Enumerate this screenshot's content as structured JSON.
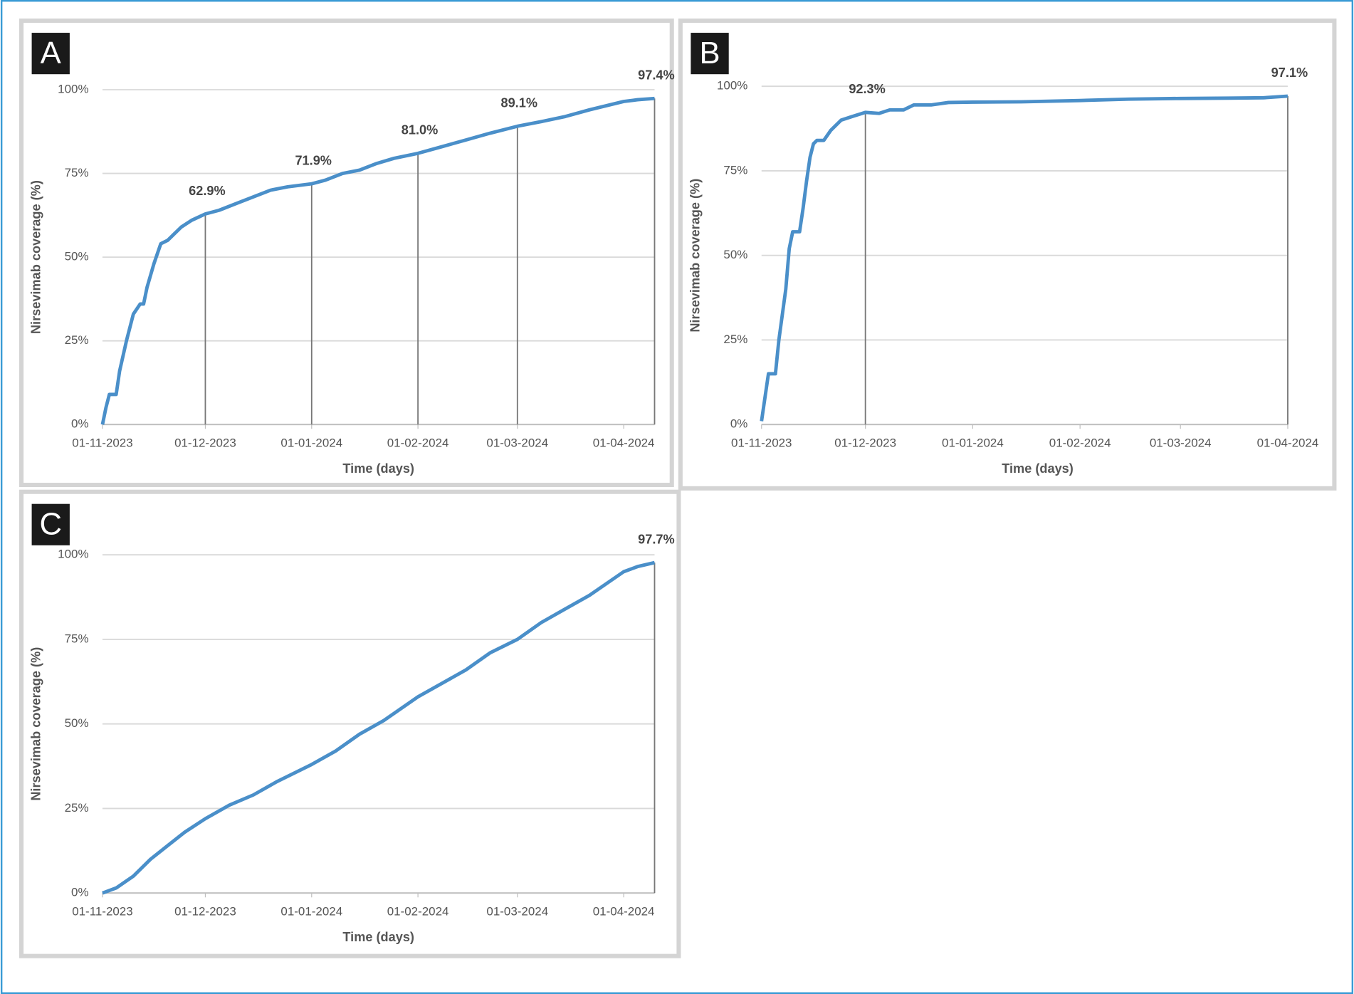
{
  "chart_data": [
    {
      "type": "line",
      "panel": "A",
      "ylabel": "Nirsevimab coverage (%)",
      "xlabel": "Time (days)",
      "color": "#4a8fc9",
      "x": [
        "2023-11-01",
        "2023-11-02",
        "2023-11-03",
        "2023-11-05",
        "2023-11-06",
        "2023-11-08",
        "2023-11-10",
        "2023-11-12",
        "2023-11-13",
        "2023-11-14",
        "2023-11-16",
        "2023-11-18",
        "2023-11-20",
        "2023-11-22",
        "2023-11-24",
        "2023-11-27",
        "2023-12-01",
        "2023-12-05",
        "2023-12-10",
        "2023-12-15",
        "2023-12-20",
        "2023-12-25",
        "2024-01-01",
        "2024-01-05",
        "2024-01-10",
        "2024-01-15",
        "2024-01-20",
        "2024-01-25",
        "2024-02-01",
        "2024-02-08",
        "2024-02-15",
        "2024-02-22",
        "2024-03-01",
        "2024-03-08",
        "2024-03-15",
        "2024-03-22",
        "2024-04-01",
        "2024-04-05",
        "2024-04-10"
      ],
      "values": [
        0,
        5,
        9,
        9,
        16,
        25,
        33,
        36,
        36,
        41,
        48,
        54,
        55,
        57,
        59,
        61,
        62.9,
        64,
        66,
        68,
        70,
        71,
        71.9,
        73,
        75,
        76,
        78,
        79.5,
        81.0,
        83,
        85,
        87,
        89.1,
        90.5,
        92,
        94,
        96.5,
        97,
        97.4
      ],
      "xlim": [
        "2023-11-01",
        "2024-04-10"
      ],
      "xticks": [
        {
          "value": "2023-11-01",
          "label": "01-11-2023"
        },
        {
          "value": "2023-12-01",
          "label": "01-12-2023"
        },
        {
          "value": "2024-01-01",
          "label": "01-01-2024"
        },
        {
          "value": "2024-02-01",
          "label": "01-02-2024"
        },
        {
          "value": "2024-03-01",
          "label": "01-03-2024"
        },
        {
          "value": "2024-04-01",
          "label": "01-04-2024"
        }
      ],
      "ylim": [
        0,
        100
      ],
      "yticks": [
        {
          "value": 0,
          "label": "0%"
        },
        {
          "value": 25,
          "label": "25%"
        },
        {
          "value": 50,
          "label": "50%"
        },
        {
          "value": 75,
          "label": "75%"
        },
        {
          "value": 100,
          "label": "100%"
        }
      ],
      "grid": true,
      "annotations": [
        {
          "x": "2023-12-01",
          "value": 62.9,
          "label": "62.9%"
        },
        {
          "x": "2024-01-01",
          "value": 71.9,
          "label": "71.9%"
        },
        {
          "x": "2024-02-01",
          "value": 81.0,
          "label": "81.0%"
        },
        {
          "x": "2024-03-01",
          "value": 89.1,
          "label": "89.1%"
        },
        {
          "x": "2024-04-10",
          "value": 97.4,
          "label": "97.4%"
        }
      ]
    },
    {
      "type": "line",
      "panel": "B",
      "ylabel": "Nirsevimab coverage (%)",
      "xlabel": "Time (days)",
      "color": "#4a8fc9",
      "x": [
        "2023-11-01",
        "2023-11-02",
        "2023-11-03",
        "2023-11-05",
        "2023-11-06",
        "2023-11-08",
        "2023-11-09",
        "2023-11-10",
        "2023-11-12",
        "2023-11-13",
        "2023-11-14",
        "2023-11-15",
        "2023-11-16",
        "2023-11-17",
        "2023-11-19",
        "2023-11-21",
        "2023-11-24",
        "2023-11-27",
        "2023-12-01",
        "2023-12-05",
        "2023-12-08",
        "2023-12-12",
        "2023-12-15",
        "2023-12-20",
        "2023-12-25",
        "2024-01-01",
        "2024-01-15",
        "2024-02-01",
        "2024-02-15",
        "2024-03-01",
        "2024-03-15",
        "2024-03-25",
        "2024-04-01"
      ],
      "values": [
        1,
        8,
        15,
        15,
        25,
        40,
        52,
        57,
        57,
        64,
        72,
        79,
        83,
        84,
        84,
        87,
        90,
        91,
        92.3,
        92,
        93,
        93,
        94.5,
        94.5,
        95.2,
        95.3,
        95.4,
        95.8,
        96.2,
        96.4,
        96.5,
        96.6,
        97.1
      ],
      "xlim": [
        "2023-11-01",
        "2024-04-01"
      ],
      "xticks": [
        {
          "value": "2023-11-01",
          "label": "01-11-2023"
        },
        {
          "value": "2023-12-01",
          "label": "01-12-2023"
        },
        {
          "value": "2024-01-01",
          "label": "01-01-2024"
        },
        {
          "value": "2024-02-01",
          "label": "01-02-2024"
        },
        {
          "value": "2024-03-01",
          "label": "01-03-2024"
        },
        {
          "value": "2024-04-01",
          "label": "01-04-2024"
        }
      ],
      "ylim": [
        0,
        100
      ],
      "yticks": [
        {
          "value": 0,
          "label": "0%"
        },
        {
          "value": 25,
          "label": "25%"
        },
        {
          "value": 50,
          "label": "50%"
        },
        {
          "value": 75,
          "label": "75%"
        },
        {
          "value": 100,
          "label": "100%"
        }
      ],
      "grid": true,
      "annotations": [
        {
          "x": "2023-12-01",
          "value": 92.3,
          "label": "92.3%"
        },
        {
          "x": "2024-04-01",
          "value": 97.1,
          "label": "97.1%"
        }
      ]
    },
    {
      "type": "line",
      "panel": "C",
      "ylabel": "Nirsevimab coverage (%)",
      "xlabel": "Time (days)",
      "color": "#4a8fc9",
      "x": [
        "2023-11-01",
        "2023-11-05",
        "2023-11-10",
        "2023-11-15",
        "2023-11-20",
        "2023-11-25",
        "2023-12-01",
        "2023-12-08",
        "2023-12-15",
        "2023-12-22",
        "2024-01-01",
        "2024-01-08",
        "2024-01-15",
        "2024-01-22",
        "2024-02-01",
        "2024-02-08",
        "2024-02-15",
        "2024-02-22",
        "2024-03-01",
        "2024-03-08",
        "2024-03-15",
        "2024-03-22",
        "2024-04-01",
        "2024-04-05",
        "2024-04-10"
      ],
      "values": [
        0,
        1.5,
        5,
        10,
        14,
        18,
        22,
        26,
        29,
        33,
        38,
        42,
        47,
        51,
        58,
        62,
        66,
        71,
        75,
        80,
        84,
        88,
        95,
        96.5,
        97.7
      ],
      "xlim": [
        "2023-11-01",
        "2024-04-10"
      ],
      "xticks": [
        {
          "value": "2023-11-01",
          "label": "01-11-2023"
        },
        {
          "value": "2023-12-01",
          "label": "01-12-2023"
        },
        {
          "value": "2024-01-01",
          "label": "01-01-2024"
        },
        {
          "value": "2024-02-01",
          "label": "01-02-2024"
        },
        {
          "value": "2024-03-01",
          "label": "01-03-2024"
        },
        {
          "value": "2024-04-01",
          "label": "01-04-2024"
        }
      ],
      "ylim": [
        0,
        100
      ],
      "yticks": [
        {
          "value": 0,
          "label": "0%"
        },
        {
          "value": 25,
          "label": "25%"
        },
        {
          "value": 50,
          "label": "50%"
        },
        {
          "value": 75,
          "label": "75%"
        },
        {
          "value": 100,
          "label": "100%"
        }
      ],
      "grid": true,
      "annotations": [
        {
          "x": "2024-04-10",
          "value": 97.7,
          "label": "97.7%"
        }
      ]
    }
  ]
}
